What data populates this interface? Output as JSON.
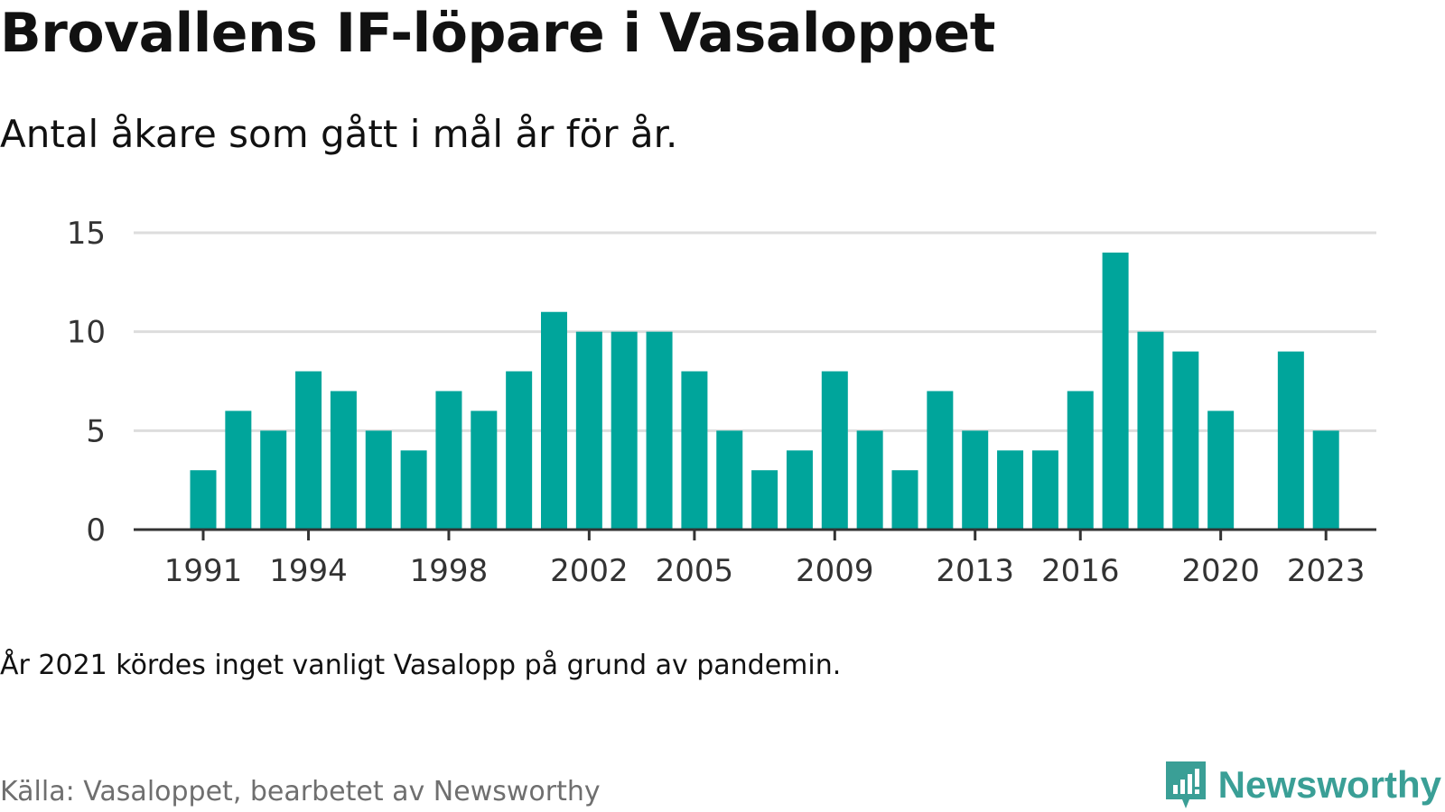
{
  "title": "Brovallens IF-löpare i Vasaloppet",
  "subtitle": "Antal åkare som gått i mål år för år.",
  "note": "År 2021 kördes inget vanligt Vasalopp på grund av pandemin.",
  "source": "Källa: Vasaloppet, bearbetet av Newsworthy",
  "brand": {
    "name": "Newsworthy",
    "icon": "newsworthy-logo-icon",
    "color": "#3a9f96"
  },
  "colors": {
    "bar": "#00a59b",
    "grid": "#dddddd",
    "axis": "#333333"
  },
  "chart_data": {
    "type": "bar",
    "title": "Brovallens IF-löpare i Vasaloppet",
    "subtitle": "Antal åkare som gått i mål år för år.",
    "xlabel": "",
    "ylabel": "",
    "ylim": [
      0,
      15
    ],
    "yticks": [
      0,
      5,
      10,
      15
    ],
    "xticks": [
      1991,
      1994,
      1998,
      2002,
      2005,
      2009,
      2013,
      2016,
      2020,
      2023
    ],
    "grid": true,
    "legend": "none",
    "categories": [
      1991,
      1992,
      1993,
      1994,
      1995,
      1996,
      1997,
      1998,
      1999,
      2000,
      2001,
      2002,
      2003,
      2004,
      2005,
      2006,
      2007,
      2008,
      2009,
      2010,
      2011,
      2012,
      2013,
      2014,
      2015,
      2016,
      2017,
      2018,
      2019,
      2020,
      2021,
      2022,
      2023
    ],
    "values": [
      3,
      6,
      5,
      8,
      7,
      5,
      4,
      7,
      6,
      8,
      11,
      10,
      10,
      10,
      8,
      5,
      3,
      4,
      8,
      5,
      3,
      7,
      5,
      4,
      4,
      7,
      14,
      10,
      9,
      6,
      null,
      9,
      5
    ]
  }
}
